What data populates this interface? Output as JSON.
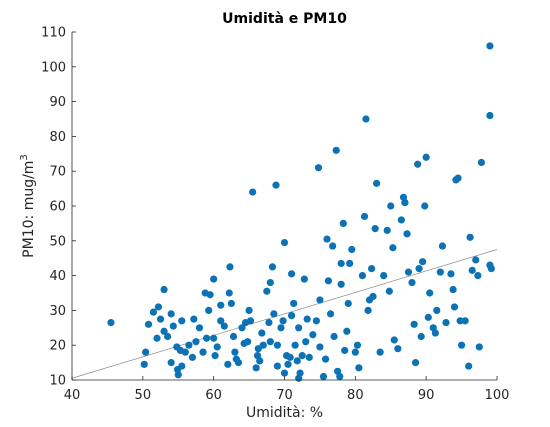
{
  "chart_data": {
    "type": "scatter",
    "title": "Umidità e PM10",
    "xlabel": "Umidità: %",
    "ylabel_main": "PM10: mug/m",
    "ylabel_sup": "3",
    "xlim": [
      40,
      100
    ],
    "ylim": [
      10,
      110
    ],
    "xticks": [
      "40",
      "50",
      "60",
      "70",
      "80",
      "90",
      "100"
    ],
    "yticks": [
      "10",
      "20",
      "30",
      "40",
      "50",
      "60",
      "70",
      "80",
      "90",
      "100",
      "110"
    ],
    "grid": false,
    "legend": "none",
    "colors": {
      "marker": "#0b72b5",
      "fit_line": "#8a8a8a",
      "axis": "#262626"
    },
    "fit_line": {
      "x": [
        40,
        100
      ],
      "y": [
        10.5,
        47.5
      ]
    },
    "points": [
      [
        45.5,
        26.5
      ],
      [
        50.2,
        14.5
      ],
      [
        50.4,
        18
      ],
      [
        50.8,
        26
      ],
      [
        51.5,
        29.5
      ],
      [
        52,
        22
      ],
      [
        52.2,
        31
      ],
      [
        52.5,
        27.5
      ],
      [
        53,
        36
      ],
      [
        53,
        24
      ],
      [
        53.5,
        22.5
      ],
      [
        54,
        29
      ],
      [
        54,
        15
      ],
      [
        54.3,
        25.5
      ],
      [
        54.8,
        19.5
      ],
      [
        54.9,
        13
      ],
      [
        55,
        11.5
      ],
      [
        55.3,
        18.5
      ],
      [
        55.5,
        27
      ],
      [
        55.5,
        14
      ],
      [
        56,
        18
      ],
      [
        56.5,
        20
      ],
      [
        57,
        16.5
      ],
      [
        57.5,
        21
      ],
      [
        57.2,
        27.5
      ],
      [
        58,
        25
      ],
      [
        58.5,
        18
      ],
      [
        58.8,
        35
      ],
      [
        59,
        22
      ],
      [
        59.3,
        30
      ],
      [
        59.5,
        34.5
      ],
      [
        60,
        39
      ],
      [
        60,
        22
      ],
      [
        60.2,
        17
      ],
      [
        60.5,
        19.5
      ],
      [
        61,
        27
      ],
      [
        61,
        31.5
      ],
      [
        61.5,
        25.5
      ],
      [
        62,
        14.5
      ],
      [
        62.2,
        35
      ],
      [
        62.3,
        42.5
      ],
      [
        62.5,
        32
      ],
      [
        62.8,
        22.5
      ],
      [
        63,
        18
      ],
      [
        63.2,
        16
      ],
      [
        63.5,
        15
      ],
      [
        64,
        25
      ],
      [
        64.3,
        20.5
      ],
      [
        64.5,
        26.5
      ],
      [
        64.8,
        21
      ],
      [
        65,
        30
      ],
      [
        65.2,
        27
      ],
      [
        65.5,
        64
      ],
      [
        66,
        13.5
      ],
      [
        66.2,
        17
      ],
      [
        66.3,
        19
      ],
      [
        66.5,
        15.5
      ],
      [
        66.8,
        23.5
      ],
      [
        67,
        20
      ],
      [
        67.5,
        35.5
      ],
      [
        67.8,
        26.5
      ],
      [
        68,
        21
      ],
      [
        68,
        38
      ],
      [
        68.3,
        42.5
      ],
      [
        68.5,
        29
      ],
      [
        68.8,
        66
      ],
      [
        69,
        20
      ],
      [
        69,
        14
      ],
      [
        69.5,
        25
      ],
      [
        69.8,
        27
      ],
      [
        70,
        12
      ],
      [
        70,
        49.5
      ],
      [
        70.3,
        17
      ],
      [
        70.5,
        14.5
      ],
      [
        70.8,
        16.5
      ],
      [
        71,
        40.5
      ],
      [
        71,
        28.5
      ],
      [
        71.3,
        32
      ],
      [
        71.5,
        20
      ],
      [
        71.8,
        15.5
      ],
      [
        72,
        10.5
      ],
      [
        72,
        25
      ],
      [
        72.2,
        12
      ],
      [
        72.5,
        17
      ],
      [
        72.8,
        39
      ],
      [
        73,
        21
      ],
      [
        73.2,
        27.5
      ],
      [
        73.5,
        16.5
      ],
      [
        74,
        23
      ],
      [
        74.5,
        27
      ],
      [
        74.8,
        71
      ],
      [
        75,
        33
      ],
      [
        75,
        19.5
      ],
      [
        75.5,
        11
      ],
      [
        75.8,
        16
      ],
      [
        76,
        50.5
      ],
      [
        76.2,
        38.5
      ],
      [
        76.5,
        29
      ],
      [
        76.8,
        48.5
      ],
      [
        77,
        22.5
      ],
      [
        77.3,
        76
      ],
      [
        77.5,
        12.5
      ],
      [
        77.8,
        11
      ],
      [
        78,
        43.5
      ],
      [
        78,
        37.5
      ],
      [
        78.3,
        55
      ],
      [
        78.5,
        18.5
      ],
      [
        78.8,
        24
      ],
      [
        79,
        32
      ],
      [
        79.2,
        43.5
      ],
      [
        79.5,
        47.5
      ],
      [
        80,
        18
      ],
      [
        80.3,
        20
      ],
      [
        80.5,
        13.5
      ],
      [
        81,
        40
      ],
      [
        81.3,
        57
      ],
      [
        81.5,
        85
      ],
      [
        81.8,
        30
      ],
      [
        82,
        33
      ],
      [
        82.3,
        42
      ],
      [
        82.5,
        34
      ],
      [
        82.8,
        53.5
      ],
      [
        83,
        66.5
      ],
      [
        83.5,
        18
      ],
      [
        84,
        40
      ],
      [
        84.5,
        53
      ],
      [
        84.8,
        35.5
      ],
      [
        85,
        60
      ],
      [
        85.3,
        48
      ],
      [
        85.5,
        21.5
      ],
      [
        86,
        19
      ],
      [
        86.5,
        56
      ],
      [
        86.8,
        62.5
      ],
      [
        87,
        61
      ],
      [
        87.3,
        52
      ],
      [
        87.5,
        41
      ],
      [
        88,
        38
      ],
      [
        88.3,
        26
      ],
      [
        88.5,
        15
      ],
      [
        88.8,
        72
      ],
      [
        89,
        42
      ],
      [
        89.3,
        22.5
      ],
      [
        89.5,
        44
      ],
      [
        89.8,
        60
      ],
      [
        90,
        74
      ],
      [
        90.3,
        28
      ],
      [
        90.5,
        35
      ],
      [
        91,
        25
      ],
      [
        91.3,
        23.5
      ],
      [
        91.5,
        30
      ],
      [
        92,
        41
      ],
      [
        92.3,
        48.5
      ],
      [
        92.8,
        26.5
      ],
      [
        93.5,
        40.5
      ],
      [
        93.8,
        36
      ],
      [
        94,
        31
      ],
      [
        94.2,
        67.5
      ],
      [
        94.5,
        68
      ],
      [
        94.8,
        27
      ],
      [
        95,
        20
      ],
      [
        95.5,
        27
      ],
      [
        96,
        14
      ],
      [
        96.2,
        51
      ],
      [
        96.5,
        41.5
      ],
      [
        97,
        44.5
      ],
      [
        97.3,
        40
      ],
      [
        97.5,
        19.5
      ],
      [
        97.8,
        72.5
      ],
      [
        99,
        106
      ],
      [
        99,
        86
      ],
      [
        99,
        43
      ],
      [
        99.2,
        42
      ],
      [
        87,
        61
      ]
    ]
  }
}
